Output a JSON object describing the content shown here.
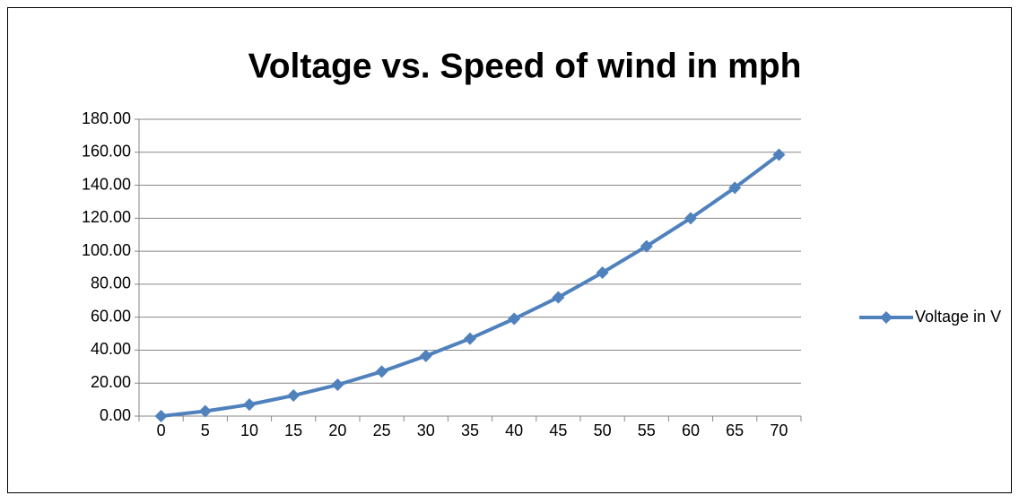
{
  "chart_data": {
    "type": "line",
    "title": "Voltage vs. Speed of wind in mph",
    "categories": [
      "0",
      "5",
      "10",
      "15",
      "20",
      "25",
      "30",
      "35",
      "40",
      "45",
      "50",
      "55",
      "60",
      "65",
      "70"
    ],
    "series": [
      {
        "name": "Voltage in V",
        "color": "#4f81bd",
        "values": [
          0,
          3,
          7,
          12.5,
          19,
          27,
          36.5,
          47,
          59,
          72,
          87,
          103,
          120,
          138.5,
          158.5
        ]
      }
    ],
    "ylim": [
      0,
      180
    ],
    "yticks": [
      {
        "value": 0,
        "label": "0.00"
      },
      {
        "value": 20,
        "label": "20.00"
      },
      {
        "value": 40,
        "label": "40.00"
      },
      {
        "value": 60,
        "label": "60.00"
      },
      {
        "value": 80,
        "label": "80.00"
      },
      {
        "value": 100,
        "label": "100.00"
      },
      {
        "value": 120,
        "label": "120.00"
      },
      {
        "value": 140,
        "label": "140.00"
      },
      {
        "value": 160,
        "label": "160.00"
      },
      {
        "value": 180,
        "label": "180.00"
      }
    ],
    "grid": true,
    "legend": "right"
  }
}
